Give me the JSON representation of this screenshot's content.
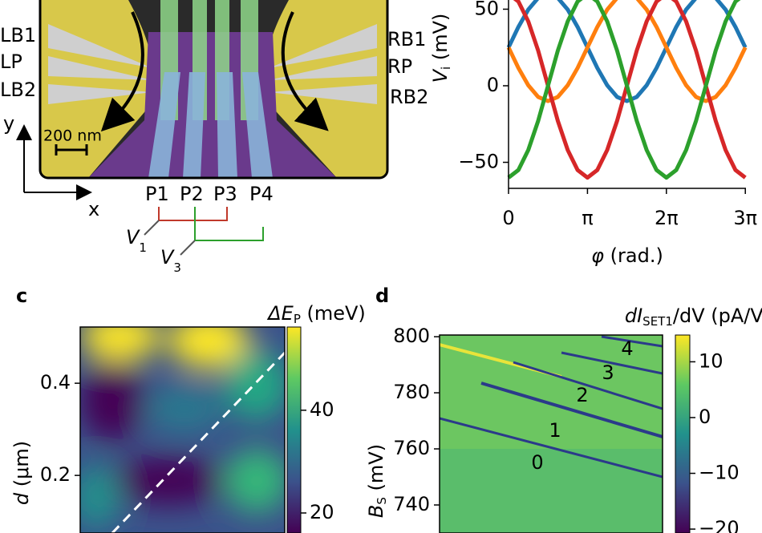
{
  "device": {
    "left_labels": [
      "LB1",
      "LP",
      "LB2"
    ],
    "right_labels": [
      "RB1",
      "RP",
      "RB2"
    ],
    "scale_bar": "200 nm",
    "axis_y": "y",
    "axis_x": "x",
    "gates": [
      "P1",
      "P2",
      "P3",
      "P4"
    ],
    "voltages": [
      {
        "symbol": "V",
        "sub": "1"
      },
      {
        "symbol": "V",
        "sub": "3"
      }
    ]
  },
  "chart_data": [
    {
      "type": "line",
      "ylabel": {
        "symbol": "V",
        "sub": "i",
        "unit": " (mV)"
      },
      "xlabel": {
        "symbol": "φ",
        "unit": " (rad.)"
      },
      "x": [
        0,
        0.393,
        0.785,
        1.178,
        1.571,
        1.963,
        2.356,
        2.749,
        3.142,
        3.534,
        3.927,
        4.32,
        4.712,
        5.105,
        5.498,
        5.89,
        6.283,
        6.676,
        7.069,
        7.461,
        7.854,
        8.247,
        8.639,
        9.032,
        9.425
      ],
      "xlim": [
        0,
        9.45
      ],
      "ylim": [
        -67,
        56
      ],
      "xticks": [
        0,
        {
          "value": 3.142,
          "label": "π"
        },
        {
          "value": 6.283,
          "label": "2π"
        },
        {
          "value": 9.425,
          "label": "3π"
        }
      ],
      "yticks": [
        -50,
        0,
        50
      ],
      "series": [
        {
          "color": "#1f77b4",
          "values": [
            25,
            38.4,
            49.7,
            57.3,
            60,
            57.3,
            49.7,
            38.4,
            25,
            11.6,
            0.3,
            -7.3,
            -10,
            -7.3,
            0.3,
            11.6,
            25,
            38.4,
            49.7,
            57.3,
            60,
            57.3,
            49.7,
            38.4,
            25
          ]
        },
        {
          "color": "#ff7f0e",
          "values": [
            25,
            11.6,
            0.3,
            -7.3,
            -10,
            -7.3,
            0.3,
            11.6,
            25,
            38.4,
            49.7,
            57.3,
            60,
            57.3,
            49.7,
            38.4,
            25,
            11.6,
            0.3,
            -7.3,
            -10,
            -7.3,
            0.3,
            11.6,
            25
          ]
        },
        {
          "color": "#d62728",
          "values": [
            60,
            55,
            42,
            23,
            0,
            -23,
            -42,
            -55,
            -60,
            -55,
            -42,
            -23,
            0,
            23,
            42,
            55,
            60,
            55,
            42,
            23,
            0,
            -23,
            -42,
            -55,
            -60
          ]
        },
        {
          "color": "#2ca02c",
          "values": [
            -60,
            -55,
            -42,
            -23,
            0,
            23,
            42,
            55,
            60,
            55,
            42,
            23,
            0,
            -23,
            -42,
            -55,
            -60,
            -55,
            -42,
            -23,
            0,
            23,
            42,
            55,
            60
          ]
        }
      ]
    },
    {
      "type": "heatmap",
      "label": "c",
      "ylabel": {
        "symbol": "d",
        "unit": " (μm)"
      },
      "ylim": [
        0.075,
        0.522
      ],
      "yticks": [
        0.2,
        0.4
      ],
      "colorbar": {
        "title": {
          "symbol": "ΔE",
          "sub": "P",
          "unit": " (meV)"
        },
        "lim": [
          16.1,
          56.2
        ],
        "ticks": [
          20,
          40
        ]
      }
    },
    {
      "type": "heatmap",
      "label": "d",
      "ylabel": {
        "symbol": "B",
        "sub": "S",
        "unit": " (mV)"
      },
      "ylim": [
        730,
        800.6
      ],
      "yticks": [
        740,
        760,
        780,
        800
      ],
      "annotations": [
        "0",
        "1",
        "2",
        "3",
        "4"
      ],
      "colorbar": {
        "title": {
          "symbol": "dI",
          "sub": "SET1",
          "unit": "/dV (pA/V)"
        },
        "lim": [
          -20.7,
          14.8
        ],
        "ticks": [
          -20,
          -10,
          0,
          10
        ]
      }
    }
  ]
}
